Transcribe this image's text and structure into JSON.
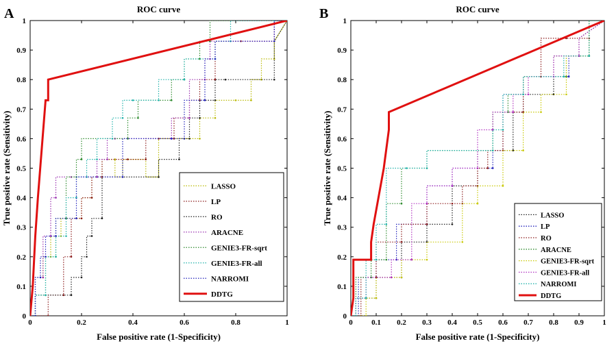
{
  "colors": {
    "LASSO_A": "#b8b800",
    "LP_A": "#8b1a1a",
    "RO_A": "#222222",
    "ARACNE_A": "#9b30b0",
    "GENIE3-FR-sqrt": "#2e8b2e",
    "GENIE3-FR-all": "#20b2aa",
    "NARROMI": "#2222bb",
    "DDTG": "#e01010",
    "LASSO_B": "#222222",
    "LP_B": "#2222bb",
    "RO_B": "#8b1a1a",
    "ARACNE_B": "#2e8b2e",
    "GENIE3-FR-sqrt_B": "#c8c800",
    "GENIE3-FR-all_B": "#b030c0",
    "NARROMI_B": "#20b2aa"
  },
  "chart_data": [
    {
      "panel_label": "A",
      "type": "line",
      "title": "ROC curve",
      "xlabel": "False positive rate (1-Specificity)",
      "ylabel": "True positive rate (Sensitivity)",
      "xlim": [
        0,
        1
      ],
      "ylim": [
        0,
        1
      ],
      "xticks": [
        "0",
        "0.2",
        "0.4",
        "0.6",
        "0.8",
        "1"
      ],
      "yticks": [
        "0",
        "0.1",
        "0.2",
        "0.3",
        "0.4",
        "0.5",
        "0.6",
        "0.7",
        "0.8",
        "0.9",
        "1"
      ],
      "legend_position": "bottom-right",
      "series": [
        {
          "name": "LASSO",
          "color": "#b8b800",
          "style": "dotted",
          "x": [
            0,
            0.02,
            0.02,
            0.05,
            0.05,
            0.08,
            0.08,
            0.12,
            0.12,
            0.2,
            0.2,
            0.24,
            0.24,
            0.28,
            0.28,
            0.33,
            0.33,
            0.36,
            0.36,
            0.45,
            0.45,
            0.5,
            0.5,
            0.6,
            0.6,
            0.66,
            0.66,
            0.72,
            0.72,
            0.8,
            0.8,
            0.86,
            0.86,
            0.9,
            0.9,
            0.95,
            0.95,
            1
          ],
          "y": [
            0,
            0,
            0.13,
            0.13,
            0.2,
            0.2,
            0.27,
            0.27,
            0.33,
            0.33,
            0.4,
            0.4,
            0.47,
            0.47,
            0.53,
            0.53,
            0.47,
            0.47,
            0.53,
            0.53,
            0.47,
            0.47,
            0.6,
            0.6,
            0.6,
            0.6,
            0.67,
            0.67,
            0.73,
            0.73,
            0.73,
            0.73,
            0.8,
            0.8,
            0.87,
            0.87,
            0.93,
            1
          ]
        },
        {
          "name": "LP",
          "color": "#8b1a1a",
          "style": "dotted",
          "x": [
            0,
            0.07,
            0.07,
            0.13,
            0.13,
            0.16,
            0.16,
            0.2,
            0.2,
            0.24,
            0.24,
            0.28,
            0.28,
            0.38,
            0.38,
            0.45,
            0.45,
            0.5,
            0.5,
            0.56,
            0.56,
            0.62,
            0.62,
            0.66,
            0.66,
            0.72,
            0.72,
            0.82,
            0.82,
            0.95,
            0.95,
            1
          ],
          "y": [
            0,
            0,
            0.07,
            0.07,
            0.2,
            0.2,
            0.33,
            0.33,
            0.4,
            0.4,
            0.47,
            0.47,
            0.53,
            0.53,
            0.53,
            0.53,
            0.6,
            0.6,
            0.6,
            0.6,
            0.67,
            0.67,
            0.73,
            0.73,
            0.8,
            0.8,
            0.93,
            0.93,
            0.93,
            0.93,
            1,
            1
          ]
        },
        {
          "name": "RO",
          "color": "#222222",
          "style": "dotted",
          "x": [
            0,
            0.02,
            0.02,
            0.16,
            0.16,
            0.2,
            0.2,
            0.22,
            0.22,
            0.24,
            0.24,
            0.28,
            0.28,
            0.5,
            0.5,
            0.58,
            0.58,
            0.62,
            0.62,
            0.66,
            0.66,
            0.72,
            0.72,
            0.76,
            0.76,
            0.95,
            0.95,
            1
          ],
          "y": [
            0,
            0,
            0.07,
            0.07,
            0.13,
            0.13,
            0.2,
            0.2,
            0.27,
            0.27,
            0.33,
            0.33,
            0.47,
            0.47,
            0.53,
            0.53,
            0.6,
            0.6,
            0.67,
            0.67,
            0.73,
            0.73,
            0.8,
            0.8,
            0.8,
            0.8,
            0.93,
            1
          ]
        },
        {
          "name": "ARACNE",
          "color": "#9b30b0",
          "style": "dotted",
          "x": [
            0,
            0.02,
            0.02,
            0.05,
            0.05,
            0.08,
            0.08,
            0.1,
            0.1,
            0.16,
            0.16,
            0.26,
            0.26,
            0.3,
            0.3,
            0.33,
            0.33,
            0.38,
            0.38,
            0.55,
            0.55,
            0.62,
            0.62,
            0.68,
            0.68,
            0.7,
            0.7,
            0.95,
            0.95,
            1
          ],
          "y": [
            0,
            0,
            0.13,
            0.13,
            0.27,
            0.27,
            0.4,
            0.4,
            0.47,
            0.47,
            0.47,
            0.47,
            0.53,
            0.53,
            0.6,
            0.6,
            0.6,
            0.6,
            0.6,
            0.6,
            0.67,
            0.67,
            0.8,
            0.8,
            0.87,
            0.87,
            0.93,
            0.93,
            1,
            1
          ]
        },
        {
          "name": "GENIE3-FR-sqrt",
          "color": "#2e8b2e",
          "style": "dotted",
          "x": [
            0,
            0.02,
            0.02,
            0.06,
            0.06,
            0.1,
            0.1,
            0.14,
            0.14,
            0.18,
            0.18,
            0.2,
            0.2,
            0.38,
            0.38,
            0.42,
            0.42,
            0.55,
            0.55,
            0.6,
            0.6,
            0.66,
            0.66,
            0.7,
            0.7,
            1
          ],
          "y": [
            0,
            0,
            0.07,
            0.07,
            0.2,
            0.2,
            0.33,
            0.33,
            0.47,
            0.47,
            0.53,
            0.53,
            0.6,
            0.6,
            0.67,
            0.67,
            0.73,
            0.73,
            0.8,
            0.8,
            0.87,
            0.87,
            0.93,
            0.93,
            1,
            1
          ]
        },
        {
          "name": "GENIE3-FR-all",
          "color": "#20b2aa",
          "style": "dotted",
          "x": [
            0,
            0.02,
            0.02,
            0.06,
            0.06,
            0.1,
            0.1,
            0.14,
            0.14,
            0.18,
            0.18,
            0.22,
            0.22,
            0.26,
            0.26,
            0.32,
            0.32,
            0.36,
            0.36,
            0.4,
            0.4,
            0.5,
            0.5,
            0.6,
            0.6,
            0.72,
            0.72,
            0.78,
            0.78,
            0.95,
            0.95,
            1
          ],
          "y": [
            0,
            0,
            0.07,
            0.07,
            0.2,
            0.2,
            0.27,
            0.27,
            0.4,
            0.4,
            0.47,
            0.47,
            0.53,
            0.53,
            0.6,
            0.6,
            0.67,
            0.67,
            0.73,
            0.73,
            0.73,
            0.73,
            0.8,
            0.8,
            0.87,
            0.87,
            0.93,
            0.93,
            1,
            1,
            1,
            1
          ]
        },
        {
          "name": "NARROMI",
          "color": "#2222bb",
          "style": "dotted",
          "x": [
            0,
            0.02,
            0.02,
            0.04,
            0.04,
            0.06,
            0.06,
            0.1,
            0.1,
            0.18,
            0.18,
            0.36,
            0.36,
            0.55,
            0.55,
            0.6,
            0.6,
            0.68,
            0.68,
            0.72,
            0.72,
            0.95,
            0.95,
            1
          ],
          "y": [
            0,
            0,
            0.13,
            0.13,
            0.2,
            0.2,
            0.27,
            0.27,
            0.33,
            0.33,
            0.47,
            0.47,
            0.6,
            0.6,
            0.6,
            0.6,
            0.73,
            0.73,
            0.87,
            0.87,
            0.93,
            0.93,
            1,
            1
          ]
        },
        {
          "name": "DDTG",
          "color": "#e01010",
          "style": "solid",
          "x": [
            0,
            0.01,
            0.02,
            0.03,
            0.06,
            0.07,
            0.07,
            1
          ],
          "y": [
            0,
            0.1,
            0.27,
            0.4,
            0.73,
            0.73,
            0.8,
            1
          ]
        }
      ]
    },
    {
      "panel_label": "B",
      "type": "line",
      "title": "ROC curve",
      "xlabel": "False positive rate (1-Specificity)",
      "ylabel": "True positive rate (Sensitivity)",
      "xlim": [
        0,
        1
      ],
      "ylim": [
        0,
        1
      ],
      "xticks": [
        "0",
        "0.1",
        "0.2",
        "0.3",
        "0.4",
        "0.5",
        "0.6",
        "0.7",
        "0.8",
        "0.9",
        "1"
      ],
      "yticks": [
        "0",
        "0.1",
        "0.2",
        "0.3",
        "0.4",
        "0.5",
        "0.6",
        "0.7",
        "0.8",
        "0.9",
        "1"
      ],
      "legend_position": "bottom-right",
      "series": [
        {
          "name": "LASSO",
          "color": "#222222",
          "style": "dotted",
          "x": [
            0,
            0.02,
            0.02,
            0.1,
            0.1,
            0.2,
            0.2,
            0.3,
            0.3,
            0.4,
            0.4,
            0.5,
            0.5,
            0.56,
            0.56,
            0.64,
            0.64,
            0.68,
            0.68,
            0.8,
            0.8,
            0.9,
            0.9,
            1
          ],
          "y": [
            0,
            0,
            0.06,
            0.06,
            0.13,
            0.13,
            0.25,
            0.25,
            0.31,
            0.31,
            0.44,
            0.44,
            0.56,
            0.56,
            0.56,
            0.56,
            0.69,
            0.69,
            0.75,
            0.75,
            0.88,
            0.88,
            0.94,
            1
          ]
        },
        {
          "name": "LP",
          "color": "#2222bb",
          "style": "dotted",
          "x": [
            0,
            0.03,
            0.03,
            0.1,
            0.1,
            0.18,
            0.18,
            0.3,
            0.3,
            0.4,
            0.4,
            0.56,
            0.56,
            0.6,
            0.6,
            0.68,
            0.68,
            0.86,
            0.86,
            0.94,
            0.94,
            1
          ],
          "y": [
            0,
            0,
            0.13,
            0.13,
            0.19,
            0.19,
            0.31,
            0.31,
            0.44,
            0.44,
            0.5,
            0.5,
            0.56,
            0.56,
            0.75,
            0.75,
            0.81,
            0.81,
            0.88,
            0.88,
            1,
            1
          ]
        },
        {
          "name": "RO",
          "color": "#8b1a1a",
          "style": "dotted",
          "x": [
            0,
            0.04,
            0.04,
            0.1,
            0.1,
            0.2,
            0.2,
            0.3,
            0.3,
            0.4,
            0.4,
            0.44,
            0.44,
            0.5,
            0.5,
            0.54,
            0.54,
            0.6,
            0.6,
            0.68,
            0.68,
            0.75,
            0.75,
            0.85,
            0.85,
            0.94,
            0.94,
            1
          ],
          "y": [
            0,
            0,
            0.13,
            0.13,
            0.25,
            0.25,
            0.31,
            0.31,
            0.38,
            0.38,
            0.38,
            0.38,
            0.44,
            0.44,
            0.5,
            0.5,
            0.56,
            0.56,
            0.69,
            0.69,
            0.81,
            0.81,
            0.94,
            0.94,
            0.94,
            0.94,
            1,
            1
          ]
        },
        {
          "name": "ARACNE",
          "color": "#2e8b2e",
          "style": "dotted",
          "x": [
            0,
            0.02,
            0.02,
            0.08,
            0.08,
            0.14,
            0.14,
            0.2,
            0.2,
            0.3,
            0.3,
            0.56,
            0.56,
            0.62,
            0.62,
            0.68,
            0.68,
            0.85,
            0.85,
            0.94,
            0.94,
            1
          ],
          "y": [
            0,
            0,
            0.13,
            0.13,
            0.19,
            0.19,
            0.38,
            0.38,
            0.5,
            0.5,
            0.56,
            0.56,
            0.69,
            0.69,
            0.75,
            0.75,
            0.81,
            0.81,
            0.88,
            0.88,
            1,
            1
          ]
        },
        {
          "name": "GENIE3-FR-sqrt",
          "color": "#c8c800",
          "style": "dotted",
          "x": [
            0,
            0.06,
            0.06,
            0.1,
            0.1,
            0.2,
            0.2,
            0.3,
            0.3,
            0.44,
            0.44,
            0.5,
            0.5,
            0.6,
            0.6,
            0.68,
            0.68,
            0.75,
            0.75,
            0.85,
            0.85,
            0.94,
            0.94,
            1
          ],
          "y": [
            0,
            0,
            0.06,
            0.06,
            0.13,
            0.13,
            0.19,
            0.19,
            0.25,
            0.25,
            0.38,
            0.38,
            0.44,
            0.44,
            0.56,
            0.56,
            0.69,
            0.69,
            0.75,
            0.75,
            0.88,
            0.88,
            1,
            1
          ]
        },
        {
          "name": "GENIE3-FR-all",
          "color": "#b030c0",
          "style": "dotted",
          "x": [
            0,
            0.02,
            0.02,
            0.06,
            0.06,
            0.16,
            0.16,
            0.24,
            0.24,
            0.3,
            0.3,
            0.4,
            0.4,
            0.5,
            0.5,
            0.56,
            0.56,
            0.64,
            0.64,
            0.7,
            0.7,
            0.8,
            0.8,
            0.9,
            0.9,
            1
          ],
          "y": [
            0,
            0,
            0.06,
            0.06,
            0.13,
            0.13,
            0.19,
            0.19,
            0.38,
            0.38,
            0.44,
            0.44,
            0.5,
            0.5,
            0.63,
            0.63,
            0.69,
            0.69,
            0.75,
            0.75,
            0.81,
            0.81,
            0.88,
            0.88,
            0.94,
            1
          ]
        },
        {
          "name": "NARROMI",
          "color": "#20b2aa",
          "style": "dotted",
          "x": [
            0,
            0.02,
            0.02,
            0.06,
            0.06,
            0.1,
            0.1,
            0.14,
            0.14,
            0.22,
            0.22,
            0.3,
            0.3,
            0.56,
            0.56,
            0.6,
            0.6,
            0.68,
            0.68,
            0.84,
            0.84,
            0.94,
            0.94,
            1
          ],
          "y": [
            0,
            0,
            0.06,
            0.06,
            0.19,
            0.19,
            0.31,
            0.31,
            0.5,
            0.5,
            0.5,
            0.5,
            0.56,
            0.56,
            0.63,
            0.63,
            0.75,
            0.75,
            0.81,
            0.81,
            0.88,
            0.88,
            1,
            1
          ]
        },
        {
          "name": "DDTG",
          "color": "#e01010",
          "style": "solid",
          "x": [
            0,
            0.01,
            0.01,
            0.08,
            0.08,
            0.09,
            0.13,
            0.15,
            0.15,
            1
          ],
          "y": [
            0,
            0.06,
            0.19,
            0.19,
            0.25,
            0.31,
            0.5,
            0.63,
            0.69,
            1
          ]
        }
      ]
    }
  ]
}
